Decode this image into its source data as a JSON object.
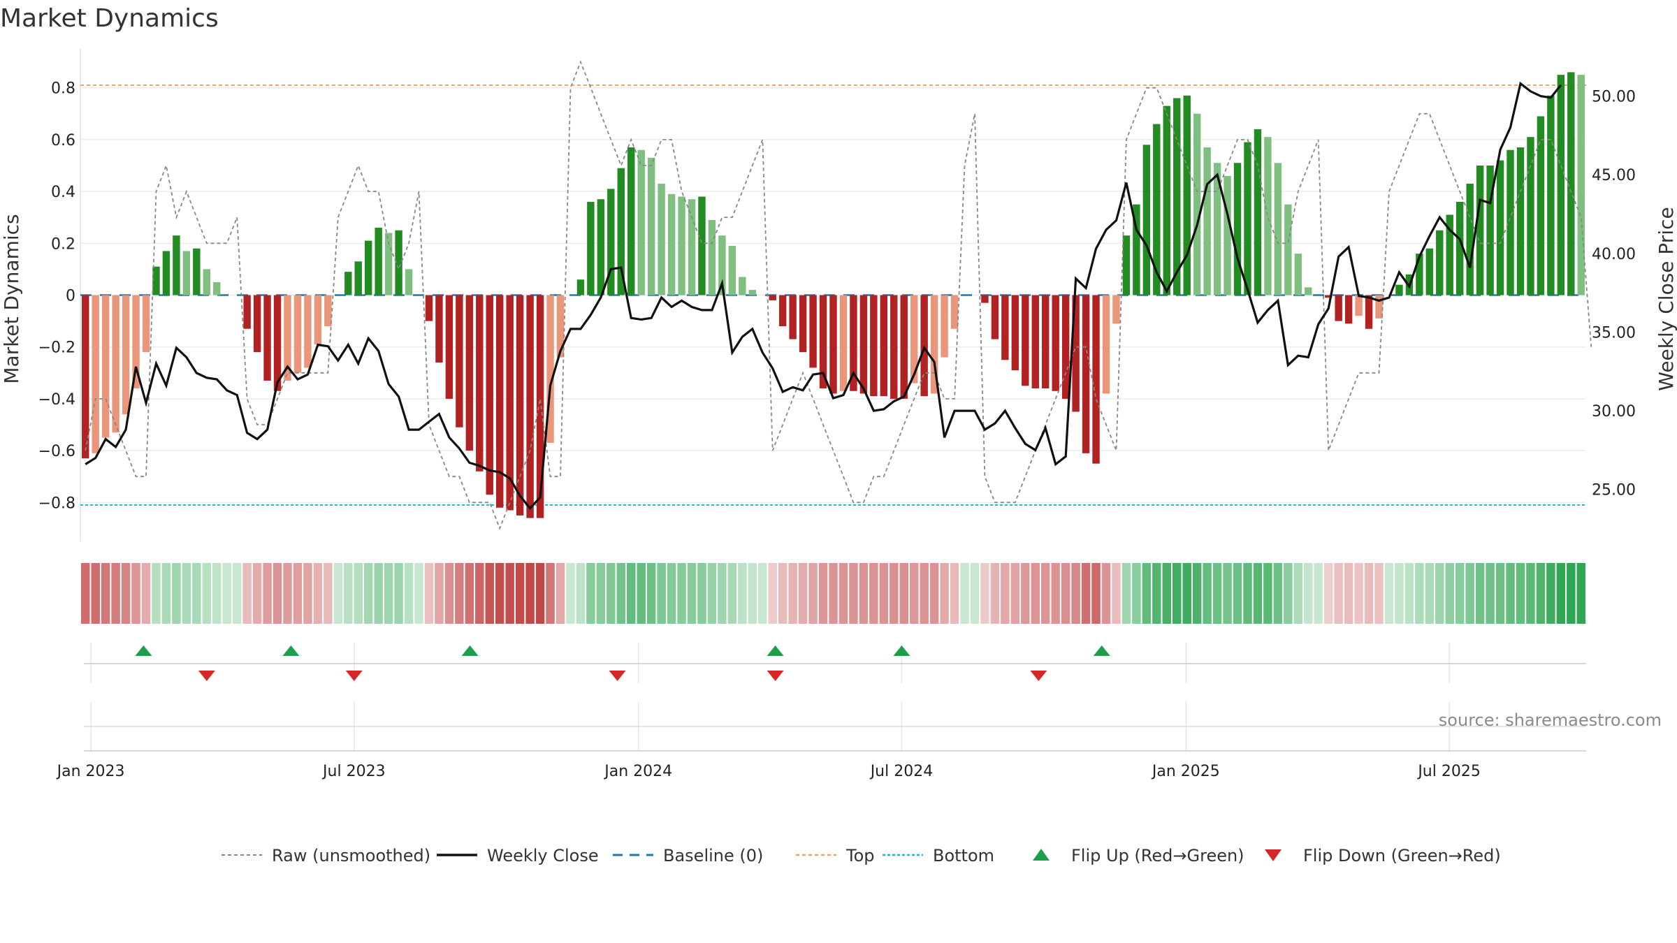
{
  "title": "Market Dynamics",
  "source": "source: sharemaestro.com",
  "colors": {
    "strong_green": "#228B22",
    "light_green": "#7FBF7F",
    "strong_red": "#B22222",
    "light_red": "#E9967A",
    "close_line": "#111111",
    "raw_line": "#888888",
    "baseline": "#1f77b4",
    "top": "#f4a460",
    "bottom": "#17becf",
    "flip_up": "#1e9e4a",
    "flip_down": "#d62728"
  },
  "legend": [
    {
      "label": "Raw (unsmoothed)",
      "kind": "raw"
    },
    {
      "label": "Weekly Close",
      "kind": "close"
    },
    {
      "label": "Baseline (0)",
      "kind": "baseline"
    },
    {
      "label": "Top",
      "kind": "top"
    },
    {
      "label": "Bottom",
      "kind": "bottom"
    },
    {
      "label": "Flip Up (Red→Green)",
      "kind": "flip_up"
    },
    {
      "label": "Flip Down (Green→Red)",
      "kind": "flip_down"
    }
  ],
  "chart_data": {
    "type": "bar",
    "title": "Market Dynamics",
    "ylabel": "Market Dynamics",
    "y2label": "Weekly Close Price",
    "ylim": [
      -0.95,
      0.95
    ],
    "y2lim": [
      21.7,
      53.0
    ],
    "yticks": [
      0.8,
      0.6,
      0.4,
      0.2,
      0,
      -0.2,
      -0.4,
      -0.6,
      -0.8
    ],
    "ytick_labels": [
      "0.8",
      "0.6",
      "0.4",
      "0.2",
      "0",
      "−0.2",
      "−0.4",
      "−0.6",
      "−0.8"
    ],
    "y2ticks": [
      50,
      45,
      40,
      35,
      30,
      25
    ],
    "y2tick_labels": [
      "50.00",
      "45.00",
      "40.00",
      "35.00",
      "30.00",
      "25.00"
    ],
    "x_ticks": [
      {
        "week": 1,
        "label": "Jan 2023"
      },
      {
        "week": 26,
        "label": "Jul 2023"
      },
      {
        "week": 53,
        "label": "Jan 2024"
      },
      {
        "week": 78,
        "label": "Jul 2024"
      },
      {
        "week": 105,
        "label": "Jan 2025"
      },
      {
        "week": 130,
        "label": "Jul 2025"
      }
    ],
    "top_level": 0.81,
    "bottom_level": -0.81,
    "baseline": 0,
    "grid": true,
    "legend_position": "bottom-center",
    "bars": [
      -0.63,
      -0.61,
      -0.55,
      -0.53,
      -0.46,
      -0.36,
      -0.22,
      0.11,
      0.17,
      0.23,
      0.17,
      0.18,
      0.1,
      0.05,
      0,
      0,
      -0.13,
      -0.22,
      -0.33,
      -0.37,
      -0.33,
      -0.3,
      -0.28,
      -0.19,
      -0.12,
      0,
      0.09,
      0.13,
      0.21,
      0.26,
      0.24,
      0.25,
      0.1,
      0,
      -0.1,
      -0.26,
      -0.4,
      -0.51,
      -0.6,
      -0.68,
      -0.77,
      -0.82,
      -0.83,
      -0.85,
      -0.86,
      -0.86,
      -0.57,
      -0.24,
      0,
      0.06,
      0.36,
      0.37,
      0.41,
      0.49,
      0.57,
      0.56,
      0.53,
      0.43,
      0.39,
      0.38,
      0.37,
      0.38,
      0.29,
      0.23,
      0.19,
      0.07,
      0.02,
      0,
      -0.02,
      -0.12,
      -0.17,
      -0.22,
      -0.28,
      -0.36,
      -0.38,
      -0.37,
      -0.37,
      -0.38,
      -0.39,
      -0.39,
      -0.4,
      -0.4,
      -0.34,
      -0.39,
      -0.38,
      -0.24,
      -0.13,
      0,
      0,
      -0.03,
      -0.17,
      -0.25,
      -0.29,
      -0.35,
      -0.36,
      -0.36,
      -0.37,
      -0.4,
      -0.45,
      -0.61,
      -0.65,
      -0.38,
      -0.11,
      0.23,
      0.35,
      0.58,
      0.66,
      0.73,
      0.76,
      0.77,
      0.7,
      0.57,
      0.51,
      0.46,
      0.51,
      0.59,
      0.64,
      0.61,
      0.51,
      0.35,
      0.16,
      0.03,
      0,
      -0.01,
      -0.1,
      -0.11,
      -0.08,
      -0.13,
      -0.09,
      0,
      0.04,
      0.08,
      0.16,
      0.18,
      0.25,
      0.31,
      0.36,
      0.43,
      0.5,
      0.5,
      0.52,
      0.56,
      0.57,
      0.61,
      0.69,
      0.77,
      0.85,
      0.86,
      0.85
    ],
    "close": [
      26.6,
      27.0,
      28.2,
      27.7,
      28.8,
      32.8,
      30.5,
      33.0,
      31.6,
      34.0,
      33.4,
      32.4,
      32.1,
      32.0,
      31.3,
      31.0,
      28.6,
      28.2,
      28.8,
      31.8,
      32.8,
      32.0,
      32.3,
      34.2,
      34.1,
      33.2,
      34.2,
      33.0,
      34.6,
      33.8,
      31.7,
      30.9,
      28.8,
      28.8,
      29.3,
      29.8,
      28.3,
      27.6,
      26.7,
      26.5,
      26.2,
      26.1,
      25.7,
      24.6,
      23.8,
      24.5,
      31.6,
      33.8,
      35.2,
      35.2,
      36.1,
      37.2,
      39.0,
      39.1,
      35.9,
      35.8,
      35.9,
      37.2,
      36.6,
      37.0,
      36.6,
      36.4,
      36.4,
      38.1,
      33.7,
      34.7,
      35.2,
      33.7,
      32.7,
      31.2,
      31.5,
      31.3,
      32.3,
      32.4,
      30.8,
      31.0,
      32.4,
      31.4,
      30.0,
      30.1,
      30.6,
      30.9,
      32.3,
      34.0,
      33.1,
      28.3,
      30.0,
      30.0,
      30.0,
      28.8,
      29.2,
      30.0,
      28.9,
      27.9,
      27.5,
      28.9,
      26.6,
      27.1,
      38.4,
      37.8,
      40.3,
      41.5,
      42.1,
      44.5,
      41.5,
      40.5,
      38.8,
      37.6,
      38.8,
      39.9,
      41.8,
      44.4,
      45.0,
      42.5,
      39.7,
      37.7,
      35.6,
      36.4,
      37.0,
      32.9,
      33.5,
      33.4,
      35.5,
      36.5,
      39.8,
      40.4,
      37.3,
      37.2,
      37.0,
      37.2,
      38.8,
      37.9,
      39.8,
      41.1,
      42.3,
      41.5,
      40.9,
      39.1,
      43.4,
      43.2,
      46.6,
      48.0,
      50.8,
      50.3,
      50.0,
      49.9,
      50.7
    ],
    "raw": [
      0.6,
      0.4,
      0.4,
      0.5,
      0.6,
      0.7,
      0.7,
      0.4,
      0.5,
      0.3,
      0.4,
      0.3,
      0.2,
      0.2,
      0.2,
      0.3,
      0.4,
      0.5,
      0.5,
      0.4,
      0.3,
      0.3,
      0.3,
      0.3,
      0.3,
      0.3,
      0.4,
      0.5,
      0.4,
      0.4,
      0.2,
      0.1,
      0.2,
      0.4,
      0.5,
      0.6,
      0.7,
      0.7,
      0.8,
      0.8,
      0.8,
      0.9,
      0.8,
      0.7,
      0.6,
      0.4,
      0.7,
      0.7,
      0.8,
      0.9,
      0.8,
      0.7,
      0.6,
      0.5,
      0.6,
      0.5,
      0.5,
      0.6,
      0.6,
      0.4,
      0.3,
      0.2,
      0.2,
      0.3,
      0.3,
      0.4,
      0.5,
      0.6,
      0.6,
      0.5,
      0.4,
      0.3,
      0.4,
      0.5,
      0.6,
      0.7,
      0.8,
      0.8,
      0.7,
      0.7,
      0.6,
      0.5,
      0.4,
      0.3,
      0.3,
      0.4,
      0.4,
      0.5,
      0.7,
      0.7,
      0.8,
      0.8,
      0.8,
      0.7,
      0.6,
      0.5,
      0.4,
      0.3,
      0.2,
      0.2,
      0.4,
      0.5,
      0.6,
      0.6,
      0.7,
      0.8,
      0.8,
      0.7,
      0.6,
      0.5,
      0.4,
      0.4,
      0.4,
      0.5,
      0.6,
      0.6,
      0.5,
      0.3,
      0.2,
      0.2,
      0.4,
      0.5,
      0.6,
      0.6,
      0.5,
      0.4,
      0.3,
      0.3,
      0.3,
      0.4,
      0.5,
      0.6,
      0.7,
      0.7,
      0.6,
      0.5,
      0.4,
      0.3,
      0.2,
      0.2,
      0.2,
      0.3,
      0.4,
      0.5,
      0.6,
      0.6,
      0.5,
      0.4,
      0.3,
      0.2
    ],
    "flip_up_weeks": [
      6,
      20,
      37,
      66,
      78,
      97
    ],
    "flip_down_weeks": [
      12,
      26,
      51,
      66,
      91
    ]
  }
}
